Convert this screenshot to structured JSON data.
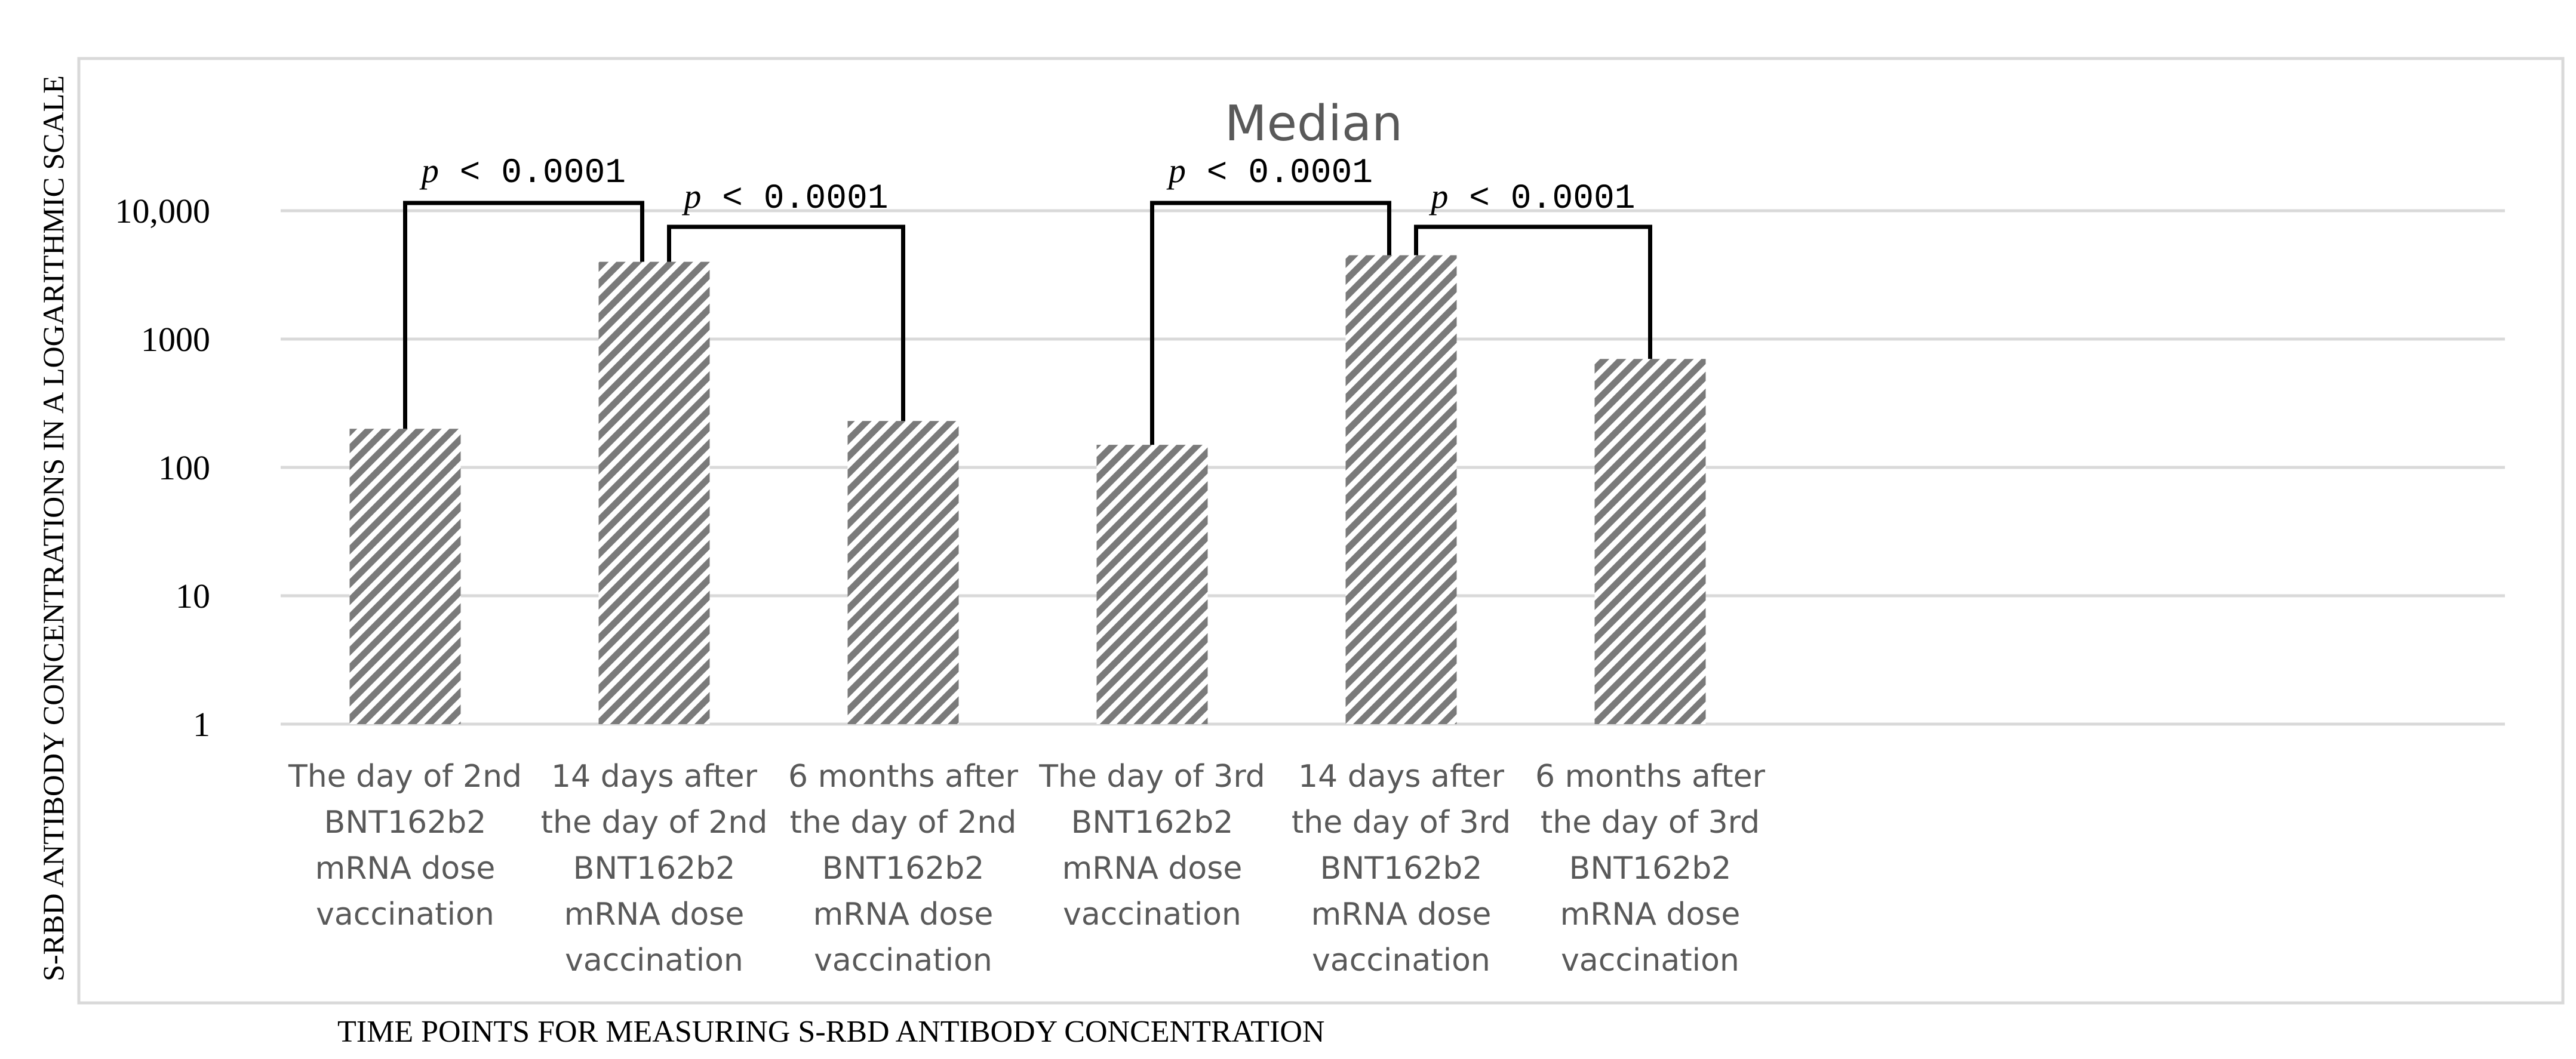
{
  "chart_data": {
    "type": "bar",
    "title": "Median",
    "ylabel": "S-RBD ANTIBODY CONCENTRATIONS IN A LOGARITHMIC SCALE",
    "xlabel": "TIME POINTS FOR MEASURING S-RBD ANTIBODY CONCENTRATION",
    "yscale": "log",
    "ylim": [
      1,
      10000
    ],
    "yticks": [
      1,
      10,
      100,
      1000,
      10000
    ],
    "ytick_labels": [
      "1",
      "10",
      "100",
      "1000",
      "10,000"
    ],
    "grid": true,
    "categories": [
      [
        "The day of 2nd",
        "BNT162b2",
        "mRNA dose",
        "vaccination"
      ],
      [
        "14 days after",
        "the day of 2nd",
        "BNT162b2",
        "mRNA dose",
        "vaccination"
      ],
      [
        "6 months after",
        "the day of 2nd",
        "BNT162b2",
        "mRNA dose",
        "vaccination"
      ],
      [
        "The day of 3rd",
        "BNT162b2",
        "mRNA dose",
        "vaccination"
      ],
      [
        "14 days after",
        "the day of 3rd",
        "BNT162b2",
        "mRNA dose",
        "vaccination"
      ],
      [
        "6 months after",
        "the day of 3rd",
        "BNT162b2",
        "mRNA dose",
        "vaccination"
      ]
    ],
    "values": [
      200,
      4000,
      230,
      150,
      4500,
      700
    ],
    "annotations": [
      {
        "from": 0,
        "to": 1,
        "p_symbol": "p",
        "p_text": "< 0.0001"
      },
      {
        "from": 1,
        "to": 2,
        "p_symbol": "p",
        "p_text": "< 0.0001"
      },
      {
        "from": 3,
        "to": 4,
        "p_symbol": "p",
        "p_text": "< 0.0001"
      },
      {
        "from": 4,
        "to": 5,
        "p_symbol": "p",
        "p_text": "< 0.0001"
      }
    ]
  }
}
